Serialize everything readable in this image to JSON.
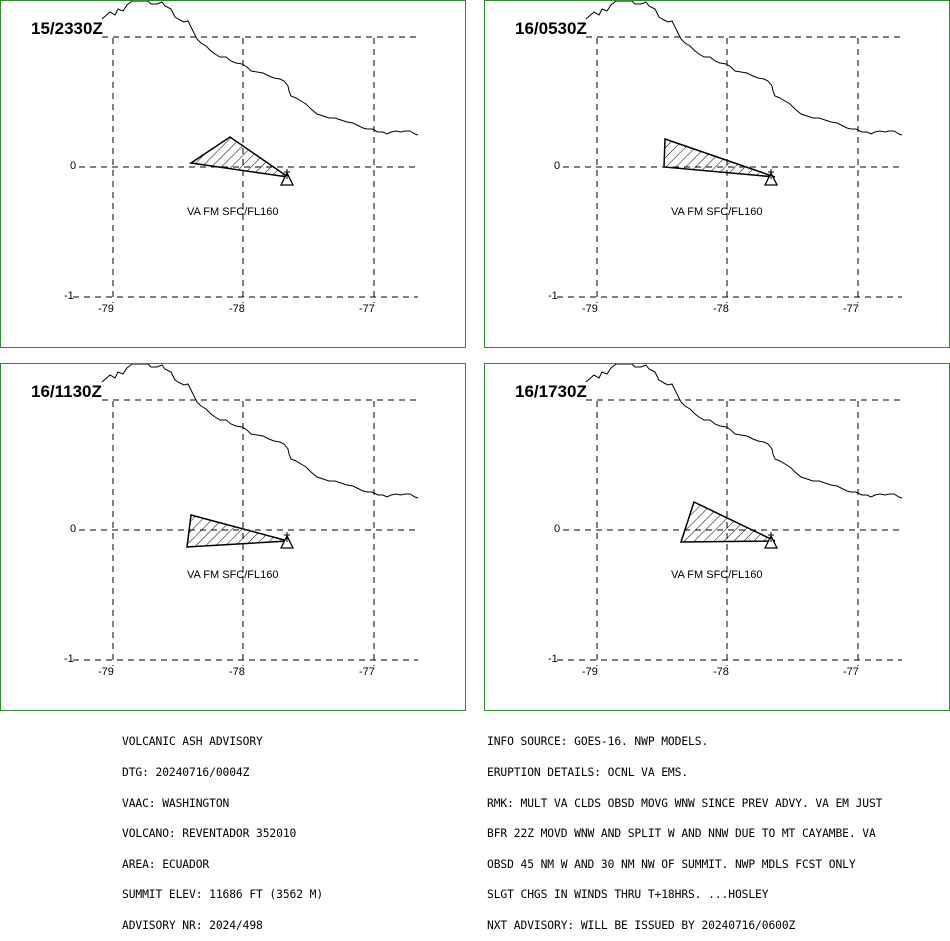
{
  "panels": [
    {
      "timestamp": "15/2330Z",
      "label": "VA FM SFC/FL160"
    },
    {
      "timestamp": "16/0530Z",
      "label": "VA FM SFC/FL160"
    },
    {
      "timestamp": "16/1130Z",
      "label": "VA FM SFC/FL160"
    },
    {
      "timestamp": "16/1730Z",
      "label": "VA FM SFC/FL160"
    }
  ],
  "axes": {
    "lat_labels": [
      "0",
      "-1"
    ],
    "lon_labels": [
      "-79",
      "-78",
      "-77"
    ]
  },
  "left_text": [
    "VOLCANIC ASH ADVISORY",
    "DTG: 20240716/0004Z",
    "VAAC: WASHINGTON",
    "VOLCANO: REVENTADOR 352010",
    "AREA: ECUADOR",
    "SUMMIT ELEV: 11686 FT (3562 M)",
    "ADVISORY NR: 2024/498"
  ],
  "right_text": [
    "INFO SOURCE: GOES-16. NWP MODELS.",
    "ERUPTION DETAILS: OCNL VA EMS.",
    "RMK: MULT VA CLDS OBSD MOVG WNW SINCE PREV ADVY. VA EM JUST",
    "BFR 22Z MOVD WNW AND SPLIT W AND NNW DUE TO MT CAYAMBE. VA",
    "OBSD 45 NM W AND 30 NM NW OF SUMMIT. NWP MDLS FCST ONLY",
    "SLGT CHGS IN WINDS THRU T+18HRS. ...HOSLEY",
    "NXT ADVISORY: WILL BE ISSUED BY 20240716/0600Z"
  ],
  "colors": {
    "panel_border": "#2e8b2e",
    "lines": "#000000"
  }
}
